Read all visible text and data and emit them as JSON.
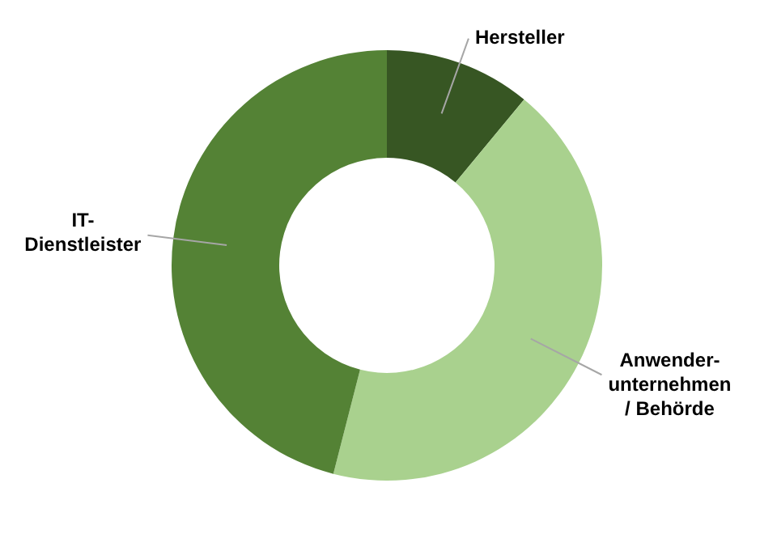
{
  "chart_data": {
    "type": "donut",
    "categories": [
      "Hersteller",
      "Anwender-\nunternehmen\n/ Behörde",
      "IT-\nDienstleister"
    ],
    "values": [
      11,
      43,
      46
    ],
    "colors": [
      "#375623",
      "#a9d18e",
      "#548235"
    ],
    "legend": false
  }
}
